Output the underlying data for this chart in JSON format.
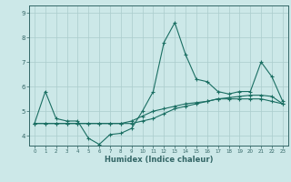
{
  "xlabel": "Humidex (Indice chaleur)",
  "x": [
    0,
    1,
    2,
    3,
    4,
    5,
    6,
    7,
    8,
    9,
    10,
    11,
    12,
    13,
    14,
    15,
    16,
    17,
    18,
    19,
    20,
    21,
    22,
    23
  ],
  "line1": [
    4.5,
    5.8,
    4.7,
    4.6,
    4.6,
    3.9,
    3.65,
    4.05,
    4.1,
    4.3,
    5.0,
    5.8,
    7.8,
    8.6,
    7.3,
    6.3,
    6.2,
    5.8,
    5.7,
    5.8,
    5.8,
    7.0,
    6.4,
    5.4
  ],
  "line2": [
    4.5,
    4.5,
    4.5,
    4.5,
    4.5,
    4.5,
    4.5,
    4.5,
    4.5,
    4.5,
    4.6,
    4.7,
    4.9,
    5.1,
    5.2,
    5.3,
    5.4,
    5.5,
    5.55,
    5.6,
    5.65,
    5.65,
    5.6,
    5.3
  ],
  "line3": [
    4.5,
    4.5,
    4.5,
    4.5,
    4.5,
    4.5,
    4.5,
    4.5,
    4.5,
    4.6,
    4.8,
    5.0,
    5.1,
    5.2,
    5.3,
    5.35,
    5.4,
    5.5,
    5.5,
    5.5,
    5.5,
    5.5,
    5.4,
    5.3
  ],
  "line_color": "#1a6e62",
  "bg_color": "#cce8e8",
  "grid_color": "#aacccc",
  "axis_color": "#336666",
  "ylim": [
    3.6,
    9.3
  ],
  "xlim": [
    -0.5,
    23.5
  ],
  "yticks": [
    4,
    5,
    6,
    7,
    8,
    9
  ]
}
